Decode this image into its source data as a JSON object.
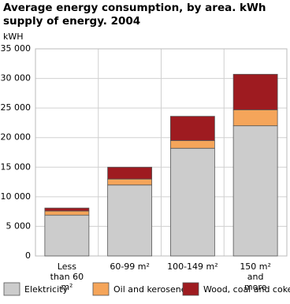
{
  "chart_data": {
    "type": "stacked_bar",
    "title": "Average energy consumption, by area. kWh supply of energy. 2004",
    "y_label": "kWH",
    "categories": [
      "Less than 60 m²",
      "60-99 m²",
      "100-149 m²",
      "150 m² and more"
    ],
    "series": [
      {
        "name": "Elektricity",
        "color": "#cccccc",
        "values": [
          6900,
          12000,
          18200,
          22000
        ]
      },
      {
        "name": "Oil and kerosene",
        "color": "#f5a55a",
        "values": [
          700,
          1000,
          1300,
          2700
        ]
      },
      {
        "name": "Wood, coal and coke",
        "color": "#9e1b20",
        "values": [
          500,
          2000,
          4100,
          6000
        ]
      }
    ],
    "ylim": [
      0,
      35000
    ],
    "yticks": [
      0,
      {
        "value": 5000,
        "label": "5 000"
      },
      {
        "value": 10000,
        "label": "10 000"
      },
      {
        "value": 15000,
        "label": "15 000"
      },
      {
        "value": 20000,
        "label": "20 000"
      },
      {
        "value": 25000,
        "label": "25 000"
      },
      {
        "value": 30000,
        "label": "30 000"
      },
      {
        "value": 35000,
        "label": "35 000"
      }
    ],
    "grid": true
  }
}
